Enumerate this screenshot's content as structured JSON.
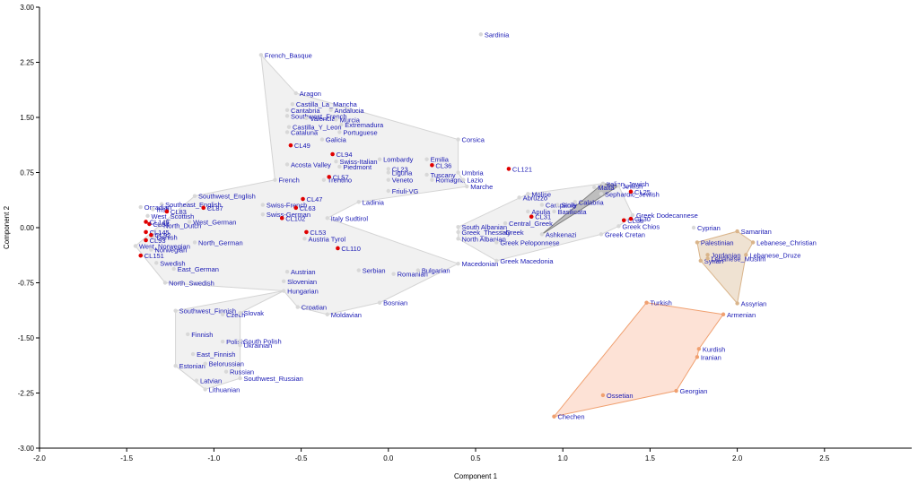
{
  "chart_data": {
    "type": "scatter",
    "xlabel": "Component 1",
    "ylabel": "Component 2",
    "xlim": [
      -2.0,
      3.0
    ],
    "ylim": [
      -3.0,
      3.0
    ],
    "x_ticks": [
      "-2.0",
      "-1.5",
      "-1.0",
      "-0.5",
      "0.0",
      "0.5",
      "1.0",
      "1.5",
      "2.0",
      "2.5"
    ],
    "y_ticks": [
      "-3.00",
      "-2.25",
      "-1.50",
      "-0.75",
      "0.00",
      "0.75",
      "1.50",
      "2.25",
      "3.00"
    ],
    "colors": {
      "label": "#1a1ab4",
      "reference_point": "#d8d8d8",
      "highlight_point": "#e00000",
      "europe_hull_fill": "#f1f1f1",
      "europe_hull_stroke": "#d4d4d4",
      "jewish_hull_fill": "#b8b8b8",
      "jewish_hull_stroke": "#7f7f7f",
      "levant_hull_fill": "#efe2d2",
      "levant_hull_stroke": "#d9b48a",
      "caucasus_hull_fill": "#fde2d6",
      "caucasus_hull_stroke": "#f0a070"
    },
    "points": [
      {
        "label": "Sardinia",
        "x": 0.53,
        "y": 2.63,
        "kind": "ref"
      },
      {
        "label": "French_Basque",
        "x": -0.73,
        "y": 2.35,
        "kind": "ref"
      },
      {
        "label": "Aragon",
        "x": -0.53,
        "y": 1.83,
        "kind": "ref"
      },
      {
        "label": "Castilla_La_Mancha",
        "x": -0.55,
        "y": 1.68,
        "kind": "ref"
      },
      {
        "label": "Cantabria",
        "x": -0.58,
        "y": 1.6,
        "kind": "ref"
      },
      {
        "label": "Andalucia",
        "x": -0.33,
        "y": 1.6,
        "kind": "ref"
      },
      {
        "label": "Southwest_French",
        "x": -0.58,
        "y": 1.52,
        "kind": "ref"
      },
      {
        "label": "Valencia",
        "x": -0.47,
        "y": 1.49,
        "kind": "ref"
      },
      {
        "label": "Murcia",
        "x": -0.3,
        "y": 1.47,
        "kind": "ref"
      },
      {
        "label": "Extremadura",
        "x": -0.27,
        "y": 1.4,
        "kind": "ref"
      },
      {
        "label": "Castilla_Y_Leon",
        "x": -0.57,
        "y": 1.37,
        "kind": "ref"
      },
      {
        "label": "Portuguese",
        "x": -0.28,
        "y": 1.3,
        "kind": "ref"
      },
      {
        "label": "Cataluna",
        "x": -0.58,
        "y": 1.3,
        "kind": "ref"
      },
      {
        "label": "Galicia",
        "x": -0.38,
        "y": 1.2,
        "kind": "ref"
      },
      {
        "label": "Corsica",
        "x": 0.4,
        "y": 1.2,
        "kind": "ref"
      },
      {
        "label": "Acosta Valley",
        "x": -0.58,
        "y": 0.86,
        "kind": "ref"
      },
      {
        "label": "Swiss-Italian",
        "x": -0.3,
        "y": 0.9,
        "kind": "ref"
      },
      {
        "label": "Lombardy",
        "x": -0.05,
        "y": 0.93,
        "kind": "ref"
      },
      {
        "label": "Emilia",
        "x": 0.22,
        "y": 0.93,
        "kind": "ref"
      },
      {
        "label": "Piedmont",
        "x": -0.28,
        "y": 0.83,
        "kind": "ref"
      },
      {
        "label": "CL23",
        "x": 0.0,
        "y": 0.8,
        "kind": "ref"
      },
      {
        "label": "Liguria",
        "x": 0.0,
        "y": 0.75,
        "kind": "ref"
      },
      {
        "label": "Tuscany",
        "x": 0.22,
        "y": 0.72,
        "kind": "ref"
      },
      {
        "label": "Umbria",
        "x": 0.4,
        "y": 0.75,
        "kind": "ref"
      },
      {
        "label": "Romagna",
        "x": 0.25,
        "y": 0.65,
        "kind": "ref"
      },
      {
        "label": "Lazio",
        "x": 0.43,
        "y": 0.65,
        "kind": "ref"
      },
      {
        "label": "Marche",
        "x": 0.45,
        "y": 0.56,
        "kind": "ref"
      },
      {
        "label": "Trentino",
        "x": -0.37,
        "y": 0.65,
        "kind": "ref"
      },
      {
        "label": "Veneto",
        "x": 0.0,
        "y": 0.65,
        "kind": "ref"
      },
      {
        "label": "French",
        "x": -0.65,
        "y": 0.65,
        "kind": "ref"
      },
      {
        "label": "Friuli-VG",
        "x": 0.0,
        "y": 0.5,
        "kind": "ref"
      },
      {
        "label": "Ladinia",
        "x": -0.17,
        "y": 0.35,
        "kind": "ref"
      },
      {
        "label": "Southwest_English",
        "x": -1.11,
        "y": 0.43,
        "kind": "ref"
      },
      {
        "label": "Southeast_English",
        "x": -1.3,
        "y": 0.32,
        "kind": "ref"
      },
      {
        "label": "Orcadian",
        "x": -1.42,
        "y": 0.28,
        "kind": "ref"
      },
      {
        "label": "Irish",
        "x": -1.35,
        "y": 0.25,
        "kind": "ref"
      },
      {
        "label": "West_Scottish",
        "x": -1.38,
        "y": 0.16,
        "kind": "ref"
      },
      {
        "label": "West_German",
        "x": -1.14,
        "y": 0.08,
        "kind": "ref"
      },
      {
        "label": "North_Dutch",
        "x": -1.31,
        "y": 0.03,
        "kind": "ref"
      },
      {
        "label": "Danish",
        "x": -1.35,
        "y": -0.13,
        "kind": "ref"
      },
      {
        "label": "West_Norwegian",
        "x": -1.45,
        "y": -0.25,
        "kind": "ref"
      },
      {
        "label": "Norwegian",
        "x": -1.36,
        "y": -0.3,
        "kind": "ref"
      },
      {
        "label": "North_German",
        "x": -1.11,
        "y": -0.2,
        "kind": "ref"
      },
      {
        "label": "Swedish",
        "x": -1.33,
        "y": -0.48,
        "kind": "ref"
      },
      {
        "label": "East_German",
        "x": -1.23,
        "y": -0.56,
        "kind": "ref"
      },
      {
        "label": "North_Swedish",
        "x": -1.28,
        "y": -0.75,
        "kind": "ref"
      },
      {
        "label": "Swiss-French",
        "x": -0.72,
        "y": 0.31,
        "kind": "ref"
      },
      {
        "label": "Swiss-German",
        "x": -0.72,
        "y": 0.18,
        "kind": "ref"
      },
      {
        "label": "Italy Sudtirol",
        "x": -0.35,
        "y": 0.13,
        "kind": "ref"
      },
      {
        "label": "Austria Tyrol",
        "x": -0.48,
        "y": -0.15,
        "kind": "ref"
      },
      {
        "label": "Austrian",
        "x": -0.58,
        "y": -0.6,
        "kind": "ref"
      },
      {
        "label": "Slovenian",
        "x": -0.6,
        "y": -0.73,
        "kind": "ref"
      },
      {
        "label": "Hungarian",
        "x": -0.6,
        "y": -0.86,
        "kind": "ref"
      },
      {
        "label": "Croatian",
        "x": -0.52,
        "y": -1.08,
        "kind": "ref"
      },
      {
        "label": "Moldavian",
        "x": -0.35,
        "y": -1.18,
        "kind": "ref"
      },
      {
        "label": "Serbian",
        "x": -0.17,
        "y": -0.58,
        "kind": "ref"
      },
      {
        "label": "Romanian",
        "x": 0.03,
        "y": -0.63,
        "kind": "ref"
      },
      {
        "label": "Macedonian",
        "x": 0.4,
        "y": -0.49,
        "kind": "ref"
      },
      {
        "label": "Bulgarian",
        "x": 0.17,
        "y": -0.58,
        "kind": "ref"
      },
      {
        "label": "Bosnian",
        "x": -0.05,
        "y": -1.02,
        "kind": "ref"
      },
      {
        "label": "Southwest_Finnish",
        "x": -1.22,
        "y": -1.13,
        "kind": "ref"
      },
      {
        "label": "Czech",
        "x": -0.95,
        "y": -1.18,
        "kind": "ref"
      },
      {
        "label": "Slovak",
        "x": -0.85,
        "y": -1.16,
        "kind": "ref"
      },
      {
        "label": "Finnish",
        "x": -1.15,
        "y": -1.45,
        "kind": "ref"
      },
      {
        "label": "Polish",
        "x": -0.95,
        "y": -1.55,
        "kind": "ref"
      },
      {
        "label": "South Polish",
        "x": -0.85,
        "y": -1.54,
        "kind": "ref"
      },
      {
        "label": "Ukrainian",
        "x": -0.85,
        "y": -1.6,
        "kind": "ref"
      },
      {
        "label": "East_Finnish",
        "x": -1.12,
        "y": -1.72,
        "kind": "ref"
      },
      {
        "label": "Estonian",
        "x": -1.22,
        "y": -1.88,
        "kind": "ref"
      },
      {
        "label": "Belorussian",
        "x": -1.05,
        "y": -1.85,
        "kind": "ref"
      },
      {
        "label": "Russian",
        "x": -0.93,
        "y": -1.96,
        "kind": "ref"
      },
      {
        "label": "Southwest_Russian",
        "x": -0.85,
        "y": -2.05,
        "kind": "ref"
      },
      {
        "label": "Latvian",
        "x": -1.1,
        "y": -2.08,
        "kind": "ref"
      },
      {
        "label": "Lithuanian",
        "x": -1.05,
        "y": -2.2,
        "kind": "ref"
      },
      {
        "label": "Molise",
        "x": 0.8,
        "y": 0.46,
        "kind": "ref"
      },
      {
        "label": "Abruzzo",
        "x": 0.75,
        "y": 0.41,
        "kind": "ref"
      },
      {
        "label": "Campania",
        "x": 0.88,
        "y": 0.31,
        "kind": "ref"
      },
      {
        "label": "Sicily",
        "x": 0.97,
        "y": 0.31,
        "kind": "ref"
      },
      {
        "label": "Calabria",
        "x": 1.07,
        "y": 0.35,
        "kind": "ref"
      },
      {
        "label": "Apulia",
        "x": 0.8,
        "y": 0.22,
        "kind": "ref"
      },
      {
        "label": "Basilicata",
        "x": 0.95,
        "y": 0.22,
        "kind": "ref"
      },
      {
        "label": "Malta",
        "x": 1.18,
        "y": 0.55,
        "kind": "ref"
      },
      {
        "label": "Italian_Jewish",
        "x": 1.23,
        "y": 0.6,
        "kind": "ref"
      },
      {
        "label": "Jewish",
        "x": 1.32,
        "y": 0.57,
        "kind": "ref"
      },
      {
        "label": "Sephardic_Jewish",
        "x": 1.22,
        "y": 0.46,
        "kind": "ref"
      },
      {
        "label": "Ashkenazi",
        "x": 0.88,
        "y": -0.09,
        "kind": "ref"
      },
      {
        "label": "Central_Greek",
        "x": 0.67,
        "y": 0.06,
        "kind": "ref"
      },
      {
        "label": "Greek",
        "x": 0.65,
        "y": -0.06,
        "kind": "ref"
      },
      {
        "label": "South Albanian",
        "x": 0.4,
        "y": 0.01,
        "kind": "ref"
      },
      {
        "label": "Greek_Thessaly",
        "x": 0.4,
        "y": -0.06,
        "kind": "ref"
      },
      {
        "label": "North Albanian",
        "x": 0.4,
        "y": -0.15,
        "kind": "ref"
      },
      {
        "label": "Greek Peloponnese",
        "x": 0.62,
        "y": -0.2,
        "kind": "ref"
      },
      {
        "label": "Greek Macedonia",
        "x": 0.62,
        "y": -0.45,
        "kind": "ref"
      },
      {
        "label": "Greek Dodecannese",
        "x": 1.4,
        "y": 0.17,
        "kind": "ref"
      },
      {
        "label": "Greek Chios",
        "x": 1.32,
        "y": 0.02,
        "kind": "ref"
      },
      {
        "label": "Greek Cretan",
        "x": 1.22,
        "y": -0.09,
        "kind": "ref"
      },
      {
        "label": "Cyprian",
        "x": 1.75,
        "y": 0.0,
        "kind": "ref"
      },
      {
        "label": "Samaritan",
        "x": 2.0,
        "y": -0.05,
        "kind": "levant"
      },
      {
        "label": "Palestinian",
        "x": 1.77,
        "y": -0.2,
        "kind": "levant"
      },
      {
        "label": "Lebanese_Christian",
        "x": 2.09,
        "y": -0.2,
        "kind": "levant"
      },
      {
        "label": "Jordanian",
        "x": 1.83,
        "y": -0.37,
        "kind": "levant"
      },
      {
        "label": "Lebanese_Druze",
        "x": 2.05,
        "y": -0.37,
        "kind": "levant"
      },
      {
        "label": "Syrian",
        "x": 1.79,
        "y": -0.45,
        "kind": "levant"
      },
      {
        "label": "Lebanese_Muslim",
        "x": 1.83,
        "y": -0.42,
        "kind": "levant"
      },
      {
        "label": "Assyrian",
        "x": 2.0,
        "y": -1.03,
        "kind": "levant"
      },
      {
        "label": "Turkish",
        "x": 1.48,
        "y": -1.02,
        "kind": "caucasus"
      },
      {
        "label": "Armenian",
        "x": 1.92,
        "y": -1.18,
        "kind": "caucasus"
      },
      {
        "label": "Kurdish",
        "x": 1.78,
        "y": -1.65,
        "kind": "caucasus"
      },
      {
        "label": "Iranian",
        "x": 1.77,
        "y": -1.76,
        "kind": "caucasus"
      },
      {
        "label": "Georgian",
        "x": 1.65,
        "y": -2.22,
        "kind": "caucasus"
      },
      {
        "label": "Ossetian",
        "x": 1.23,
        "y": -2.28,
        "kind": "caucasus"
      },
      {
        "label": "Chechen",
        "x": 0.95,
        "y": -2.57,
        "kind": "caucasus"
      },
      {
        "label": "CL49",
        "x": -0.56,
        "y": 1.12,
        "kind": "hl"
      },
      {
        "label": "CL94",
        "x": -0.32,
        "y": 1.0,
        "kind": "hl"
      },
      {
        "label": "CL57",
        "x": -0.34,
        "y": 0.69,
        "kind": "hl"
      },
      {
        "label": "CL36",
        "x": 0.25,
        "y": 0.85,
        "kind": "hl"
      },
      {
        "label": "CL121",
        "x": 0.69,
        "y": 0.8,
        "kind": "hl"
      },
      {
        "label": "CL47",
        "x": -0.49,
        "y": 0.39,
        "kind": "hl"
      },
      {
        "label": "CL63",
        "x": -0.53,
        "y": 0.27,
        "kind": "hl"
      },
      {
        "label": "CL102",
        "x": -0.61,
        "y": 0.13,
        "kind": "hl"
      },
      {
        "label": "CL53",
        "x": -0.47,
        "y": -0.06,
        "kind": "hl"
      },
      {
        "label": "CL110",
        "x": -0.29,
        "y": -0.28,
        "kind": "hl"
      },
      {
        "label": "CL87",
        "x": -1.06,
        "y": 0.27,
        "kind": "hl"
      },
      {
        "label": "CL83",
        "x": -1.27,
        "y": 0.22,
        "kind": "hl"
      },
      {
        "label": "CL84",
        "x": -1.37,
        "y": 0.05,
        "kind": "hl"
      },
      {
        "label": "CL146",
        "x": -1.39,
        "y": 0.08,
        "kind": "hl"
      },
      {
        "label": "CL145",
        "x": -1.39,
        "y": -0.06,
        "kind": "hl"
      },
      {
        "label": "CL92",
        "x": -1.36,
        "y": -0.1,
        "kind": "hl"
      },
      {
        "label": "CL93",
        "x": -1.39,
        "y": -0.17,
        "kind": "hl"
      },
      {
        "label": "CL151",
        "x": -1.42,
        "y": -0.38,
        "kind": "hl"
      },
      {
        "label": "CL31",
        "x": 0.82,
        "y": 0.15,
        "kind": "hl"
      },
      {
        "label": "CL38",
        "x": 1.35,
        "y": 0.1,
        "kind": "hl"
      },
      {
        "label": "CL25",
        "x": 1.39,
        "y": 0.49,
        "kind": "hl"
      },
      {
        "label": "CL30",
        "x": 1.39,
        "y": 0.12,
        "kind": "hl"
      }
    ],
    "hulls": [
      {
        "group": "europe",
        "style": "europe",
        "members": [
          "French_Basque",
          "Aragon",
          "Corsica",
          "Umbria",
          "Marche",
          "Ladinia",
          "Italy Sudtirol",
          "Macedonian",
          "Bosnian",
          "Moldavian",
          "Croatian",
          "Hungarian",
          "North_Swedish",
          "West_Norwegian",
          "Southwest_English",
          "French"
        ]
      },
      {
        "group": "europe",
        "style": "europe",
        "members": [
          "Southwest_Finnish",
          "Hungarian",
          "Slovak",
          "South Polish",
          "Southwest_Russian",
          "Lithuanian",
          "Estonian"
        ]
      },
      {
        "group": "balkan",
        "style": "europe",
        "members": [
          "South Albanian",
          "Molise",
          "Italian_Jewish",
          "Jewish",
          "Greek Dodecannese",
          "Greek Chios",
          "Greek Cretan",
          "Greek Macedonia",
          "North Albanian"
        ]
      },
      {
        "group": "jewish",
        "style": "jewish",
        "members": [
          "Italian_Jewish",
          "Jewish",
          "Ashkenazi"
        ]
      },
      {
        "group": "levant",
        "style": "levant",
        "members": [
          "Samaritan",
          "Lebanese_Christian",
          "Lebanese_Druze",
          "Assyrian",
          "Syrian",
          "Palestinian"
        ]
      },
      {
        "group": "caucasus",
        "style": "caucasus",
        "members": [
          "Turkish",
          "Armenian",
          "Kurdish",
          "Iranian",
          "Georgian",
          "Chechen"
        ]
      }
    ]
  }
}
